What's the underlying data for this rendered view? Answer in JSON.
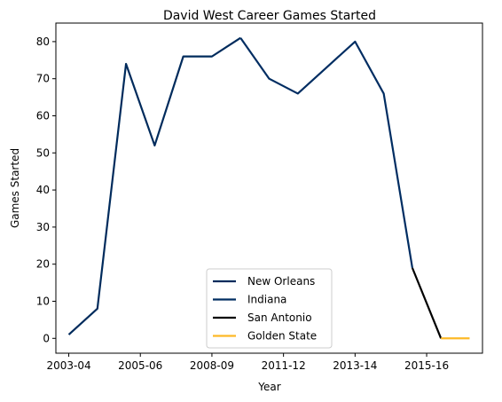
{
  "chart_data": {
    "type": "line",
    "title": "David West  Career Games Started",
    "xlabel": "Year",
    "ylabel": "Games Started",
    "ylim": [
      -4,
      85
    ],
    "yticks": [
      0,
      10,
      20,
      30,
      40,
      50,
      60,
      70,
      80
    ],
    "xlim": [
      -0.45,
      14.45
    ],
    "xticks": [
      {
        "pos": 0,
        "label": "2003-04"
      },
      {
        "pos": 2.5,
        "label": "2005-06"
      },
      {
        "pos": 5,
        "label": "2008-09"
      },
      {
        "pos": 7.5,
        "label": "2011-12"
      },
      {
        "pos": 10,
        "label": "2013-14"
      },
      {
        "pos": 12.5,
        "label": "2015-16"
      }
    ],
    "legend_position": "lower center",
    "series": [
      {
        "name": "New Orleans",
        "color": "#002B5C",
        "x": [
          0,
          1,
          2,
          3,
          4,
          5,
          6
        ],
        "y": [
          1,
          8,
          74,
          52,
          76,
          76,
          81
        ]
      },
      {
        "name": "Indiana",
        "color": "#002D62",
        "x": [
          6,
          7,
          8,
          9,
          10,
          11,
          12
        ],
        "y": [
          81,
          70,
          66,
          73,
          80,
          66,
          19
        ]
      },
      {
        "name": "San Antonio",
        "color": "#000000",
        "x": [
          12,
          13
        ],
        "y": [
          19,
          0
        ]
      },
      {
        "name": "Golden State",
        "color": "#FDB927",
        "x": [
          13,
          14
        ],
        "y": [
          0,
          0
        ]
      }
    ]
  }
}
